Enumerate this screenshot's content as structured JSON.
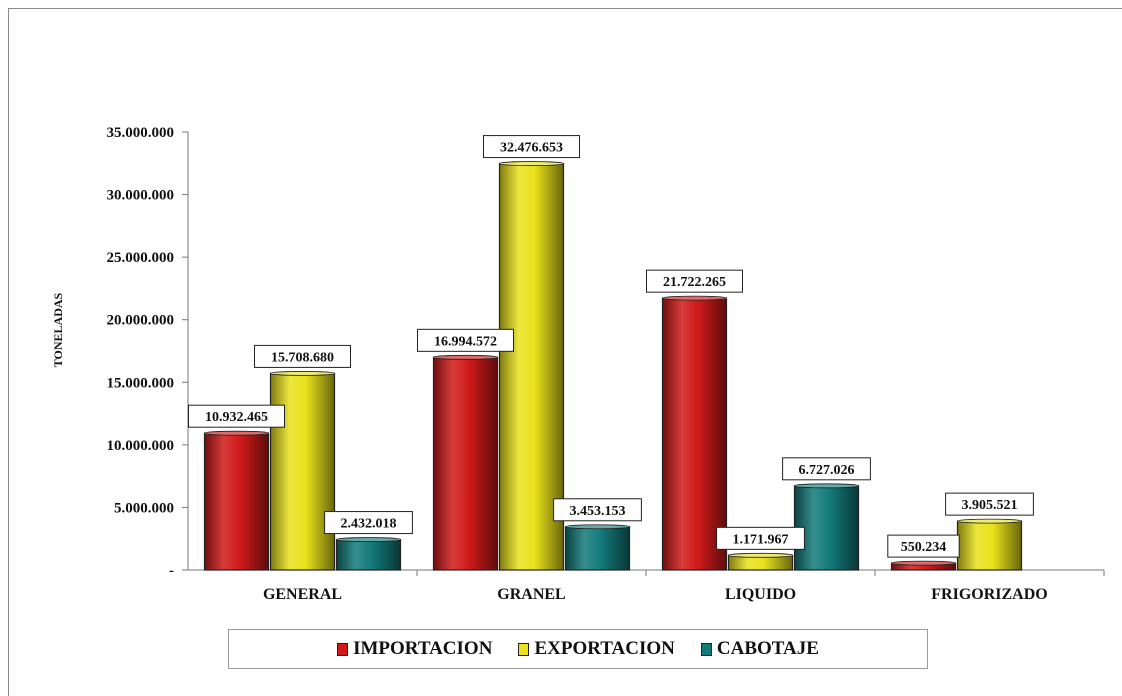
{
  "chart_data": {
    "type": "bar",
    "title": "",
    "xlabel": "",
    "ylabel": "TONELADAS",
    "categories": [
      "GENERAL",
      "GRANEL",
      "LIQUIDO",
      "FRIGORIZADO"
    ],
    "series": [
      {
        "name": "IMPORTACION",
        "color": "#d01a1a",
        "values": [
          10932465,
          16994572,
          21722265,
          550234
        ],
        "labels": [
          "10.932.465",
          "16.994.572",
          "21.722.265",
          "550.234"
        ]
      },
      {
        "name": "EXPORTACION",
        "color": "#e9e21c",
        "values": [
          15708680,
          32476653,
          1171967,
          3905521
        ],
        "labels": [
          "15.708.680",
          "32.476.653",
          "1.171.967",
          "3.905.521"
        ]
      },
      {
        "name": "CABOTAJE",
        "color": "#137a7a",
        "values": [
          2432018,
          3453153,
          6727026,
          null
        ],
        "labels": [
          "2.432.018",
          "3.453.153",
          "6.727.026",
          ""
        ]
      }
    ],
    "ylim": [
      0,
      35000000
    ],
    "yticks": [
      0,
      5000000,
      10000000,
      15000000,
      20000000,
      25000000,
      30000000,
      35000000
    ],
    "ytick_labels": [
      "-",
      "5.000.000",
      "10.000.000",
      "15.000.000",
      "20.000.000",
      "25.000.000",
      "30.000.000",
      "35.000.000"
    ],
    "grid": false,
    "legend_position": "bottom"
  }
}
